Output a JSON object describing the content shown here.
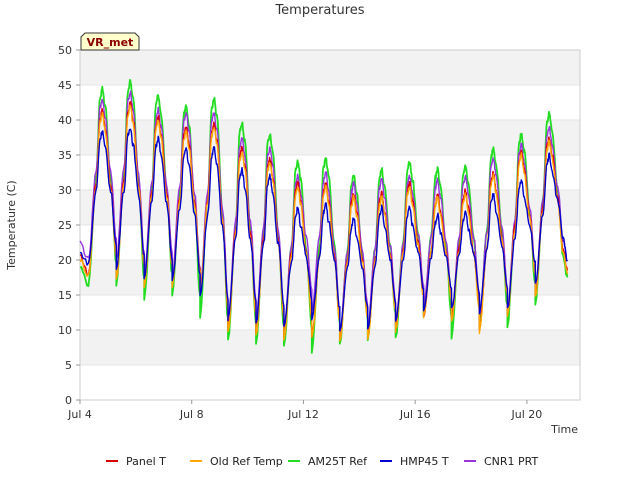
{
  "chart_data": {
    "type": "line",
    "title": "Temperatures",
    "xlabel": "Time",
    "ylabel": "Temperature (C)",
    "badge": "VR_met",
    "x_unit": "days since Jul 4",
    "xlim": [
      0,
      17.9
    ],
    "ylim": [
      0,
      50
    ],
    "yticks": [
      0,
      5,
      10,
      15,
      20,
      25,
      30,
      35,
      40,
      45,
      50
    ],
    "xticks": [
      {
        "value": 0,
        "label": "Jul 4"
      },
      {
        "value": 4,
        "label": "Jul 8"
      },
      {
        "value": 8,
        "label": "Jul 12"
      },
      {
        "value": 12,
        "label": "Jul 16"
      },
      {
        "value": 16,
        "label": "Jul 20"
      }
    ],
    "grid": "horizontal bands",
    "legend_position": "bottom",
    "day_peak_time": [
      0.8,
      1.8,
      2.8,
      3.8,
      4.8,
      5.8,
      6.8,
      7.8,
      8.8,
      9.8,
      10.8,
      11.8,
      12.8,
      13.8,
      14.8,
      15.8,
      16.8
    ],
    "series": [
      {
        "name": "Panel T",
        "color": "#dd0000",
        "start": 20.5,
        "end": 18.5,
        "daily_min": [
          18.0,
          17.5,
          16.5,
          16.5,
          15.5,
          10.0,
          9.5,
          9.0,
          9.0,
          8.5,
          9.0,
          10.0,
          12.0,
          11.5,
          10.0,
          12.0,
          15.0
        ],
        "daily_max": [
          41.5,
          42.5,
          40.5,
          39.0,
          39.5,
          36.0,
          34.5,
          31.0,
          31.0,
          29.5,
          29.5,
          31.0,
          29.5,
          30.0,
          32.5,
          35.5,
          37.5
        ]
      },
      {
        "name": "Old Ref Temp",
        "color": "#ffa500",
        "start": 20.0,
        "end": 18.0,
        "daily_min": [
          17.8,
          17.3,
          16.3,
          16.3,
          15.3,
          9.8,
          9.3,
          8.8,
          8.8,
          8.3,
          8.8,
          9.8,
          11.8,
          11.3,
          9.8,
          11.8,
          14.8
        ],
        "daily_max": [
          41.0,
          42.0,
          40.0,
          38.5,
          39.0,
          35.5,
          34.0,
          30.5,
          30.5,
          29.0,
          29.0,
          30.5,
          29.0,
          29.5,
          32.0,
          35.0,
          37.0
        ]
      },
      {
        "name": "AM25T Ref",
        "color": "#22dd22",
        "start": 19.0,
        "end": 17.5,
        "daily_min": [
          16.5,
          16.5,
          14.5,
          15.0,
          12.0,
          8.5,
          8.0,
          7.5,
          7.0,
          8.0,
          8.5,
          9.0,
          12.0,
          9.0,
          10.5,
          10.5,
          13.5
        ],
        "daily_max": [
          44.5,
          45.5,
          43.5,
          42.0,
          43.0,
          39.5,
          38.0,
          34.0,
          34.5,
          32.0,
          33.0,
          34.0,
          33.0,
          33.5,
          36.0,
          38.0,
          41.0
        ]
      },
      {
        "name": "HMP45 T",
        "color": "#0000cc",
        "start": 21.0,
        "end": 20.0,
        "daily_min": [
          19.5,
          19.0,
          17.5,
          17.0,
          15.0,
          11.5,
          11.0,
          10.5,
          11.5,
          10.0,
          10.0,
          11.0,
          13.0,
          13.0,
          12.5,
          13.0,
          16.5
        ],
        "daily_max": [
          38.5,
          39.0,
          37.5,
          36.0,
          36.0,
          33.0,
          32.0,
          27.5,
          28.0,
          26.0,
          27.5,
          27.5,
          26.5,
          27.0,
          29.5,
          31.5,
          35.0
        ]
      },
      {
        "name": "CNR1 PRT",
        "color": "#9933dd",
        "start": 22.5,
        "end": 20.0,
        "daily_min": [
          20.0,
          20.0,
          18.0,
          18.0,
          16.0,
          11.5,
          11.5,
          10.0,
          12.5,
          9.5,
          10.5,
          11.0,
          13.5,
          12.0,
          12.0,
          13.0,
          16.0
        ],
        "daily_max": [
          43.0,
          44.0,
          41.5,
          41.0,
          41.0,
          37.5,
          36.0,
          32.0,
          32.5,
          31.0,
          31.5,
          32.0,
          31.5,
          32.0,
          34.5,
          36.5,
          39.0
        ]
      }
    ]
  }
}
